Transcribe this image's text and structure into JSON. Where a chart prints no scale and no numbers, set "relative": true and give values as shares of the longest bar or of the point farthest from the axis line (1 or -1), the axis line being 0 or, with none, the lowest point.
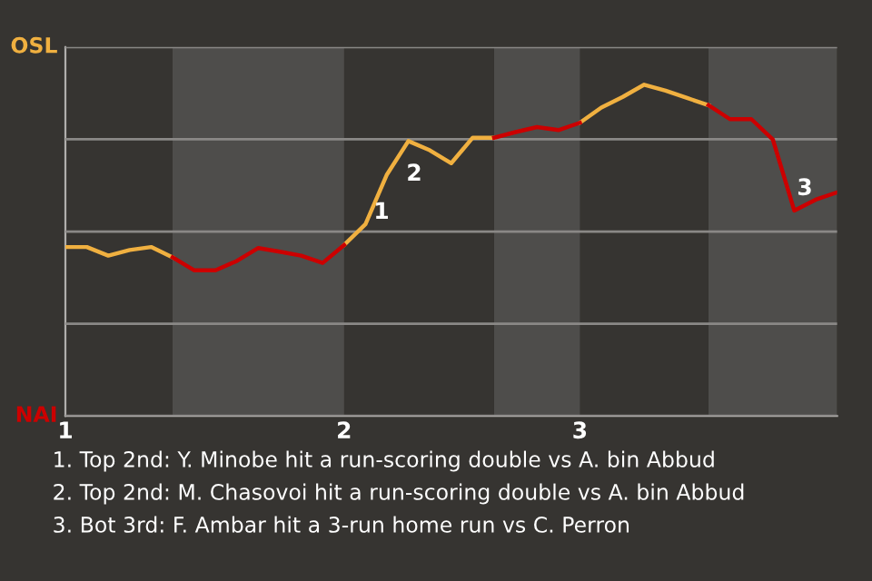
{
  "chart_data": {
    "type": "line",
    "relative": true,
    "categories": [
      "1",
      null,
      null,
      null,
      null,
      null,
      null,
      null,
      null,
      null,
      null,
      null,
      null,
      "2",
      null,
      null,
      null,
      null,
      null,
      null,
      null,
      null,
      null,
      null,
      "3",
      null,
      null,
      null,
      null,
      null,
      null,
      null,
      null,
      null,
      null,
      null,
      null
    ],
    "series": [
      {
        "color": "#f0b040",
        "values": [
          0.51,
          0.51,
          0.484,
          0.501,
          0.51,
          0.479,
          null,
          null,
          null,
          null,
          null,
          null,
          null,
          0.516,
          0.579,
          0.729,
          0.83,
          0.802,
          0.763,
          0.84,
          0.84,
          null,
          null,
          null,
          0.885,
          0.931,
          0.963,
          1,
          0.982,
          0.96,
          0.938,
          null,
          null,
          null,
          null,
          null,
          null
        ]
      },
      {
        "color": "#cc0000",
        "values": [
          null,
          null,
          null,
          null,
          null,
          0.479,
          0.44,
          0.44,
          0.468,
          0.507,
          0.496,
          0.484,
          0.462,
          0.516,
          null,
          null,
          null,
          null,
          null,
          null,
          0.84,
          0.857,
          0.872,
          0.863,
          0.885,
          null,
          null,
          null,
          null,
          null,
          0.938,
          0.896,
          0.896,
          0.835,
          0.62,
          0.653,
          0.675
        ]
      }
    ],
    "grid": "y",
    "marker": "none",
    "line_style": "solid",
    "annotations": [
      "OSL",
      "NAI",
      "1",
      "2",
      "3",
      "1. Top 2nd: Y. Minobe hit a run-scoring double vs A. bin Abbud",
      "2. Top 2nd: M. Chasovoi hit a run-scoring double vs A. bin Abbud",
      "3. Bot 3rd: F. Ambar hit a 3-run home run vs C. Perron"
    ]
  }
}
